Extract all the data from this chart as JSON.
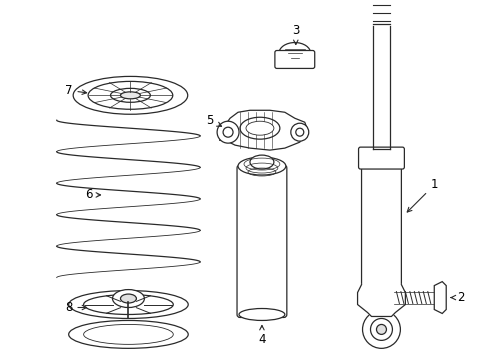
{
  "bg_color": "#ffffff",
  "line_color": "#2a2a2a",
  "label_color": "#000000",
  "fig_width": 4.89,
  "fig_height": 3.6,
  "dpi": 100,
  "lw": 0.9
}
